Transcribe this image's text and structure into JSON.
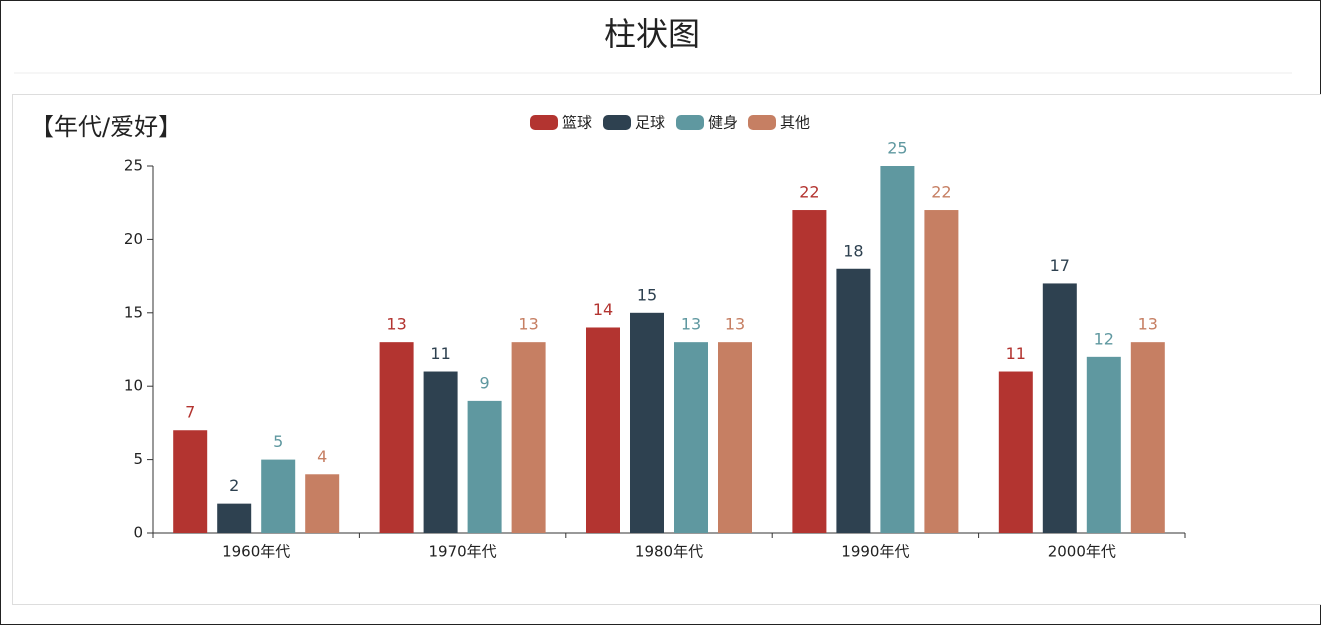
{
  "header": {
    "title": "柱状图"
  },
  "chart_data": {
    "type": "bar",
    "y_axis_label": "【年代/爱好】",
    "categories": [
      "1960年代",
      "1970年代",
      "1980年代",
      "1990年代",
      "2000年代"
    ],
    "series": [
      {
        "name": "篮球",
        "color": "#b33430",
        "values": [
          7,
          13,
          14,
          22,
          11
        ]
      },
      {
        "name": "足球",
        "color": "#2e4150",
        "values": [
          2,
          11,
          15,
          18,
          17
        ]
      },
      {
        "name": "健身",
        "color": "#5f98a0",
        "values": [
          5,
          9,
          13,
          25,
          12
        ]
      },
      {
        "name": "其他",
        "color": "#c67f63",
        "values": [
          4,
          13,
          13,
          22,
          13
        ]
      }
    ],
    "ylim": [
      0,
      25
    ],
    "yticks": [
      0,
      5,
      10,
      15,
      20,
      25
    ]
  }
}
